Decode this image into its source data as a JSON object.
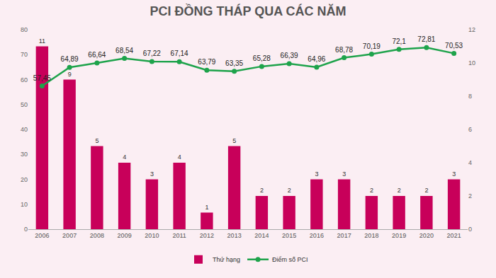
{
  "chart_data": {
    "type": "bar",
    "title": "PCI ĐỒNG THÁP QUA CÁC NĂM",
    "categories": [
      "2006",
      "2007",
      "2008",
      "2009",
      "2010",
      "2011",
      "2012",
      "2013",
      "2014",
      "2015",
      "2016",
      "2017",
      "2018",
      "2019",
      "2020",
      "2021"
    ],
    "series": [
      {
        "name": "Thứ hạng",
        "type": "bar",
        "axis": "y2",
        "color": "#c8005a",
        "values": [
          11,
          9,
          5,
          4,
          3,
          4,
          1,
          5,
          2,
          2,
          3,
          3,
          2,
          2,
          2,
          3
        ]
      },
      {
        "name": "Điểm số PCI",
        "type": "line",
        "color": "#1ea34b",
        "marker": "circle",
        "values": [
          57.45,
          64.89,
          66.64,
          68.54,
          67.22,
          67.14,
          63.79,
          63.35,
          65.28,
          66.39,
          64.96,
          68.78,
          70.19,
          72.1,
          72.81,
          70.53
        ],
        "value_labels": [
          "57,45",
          "64,89",
          "66,64",
          "68,54",
          "67,22",
          "67,14",
          "63,79",
          "63,35",
          "65,28",
          "66,39",
          "64,96",
          "68,78",
          "70,19",
          "72,1",
          "72,81",
          "70,53"
        ]
      }
    ],
    "ylim": [
      0,
      80
    ],
    "yticks": [
      0,
      10,
      20,
      30,
      40,
      50,
      60,
      70,
      80
    ],
    "y2lim": [
      0,
      12
    ],
    "y2ticks": [
      0,
      2,
      4,
      6,
      8,
      10,
      12
    ],
    "grid": false,
    "legend": "bottom",
    "data_labels": true
  }
}
